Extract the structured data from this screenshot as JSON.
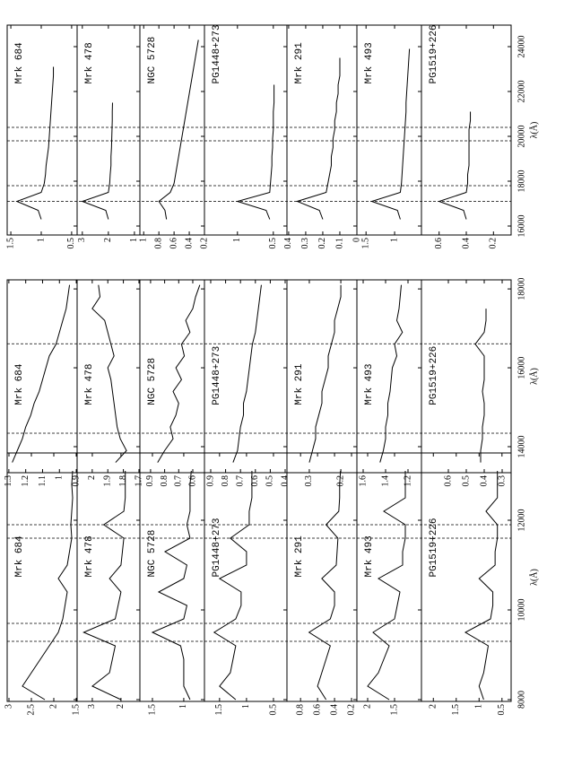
{
  "chart_data": [
    {
      "type": "line",
      "xlabel": "λ(Å)",
      "xlim": [
        7960,
        13500
      ],
      "xticks": [
        8000,
        10000,
        12000
      ],
      "vlines": [
        9300,
        9700,
        11600,
        11900
      ],
      "x": [
        8000,
        8300,
        8600,
        8900,
        9200,
        9500,
        9800,
        10100,
        10400,
        10700,
        11000,
        11300,
        11600,
        11900,
        12200,
        12500,
        12800,
        13100
      ],
      "series": [
        {
          "name": "Mrk 684",
          "ylim": [
            1.48,
            3.04
          ],
          "yticks": [
            3,
            2.5,
            2,
            1.5
          ],
          "values": [
            2.2,
            2.7,
            2.5,
            2.3,
            2.1,
            1.9,
            1.8,
            1.75,
            1.7,
            1.9,
            1.7,
            1.65,
            1.6,
            1.62,
            1.6,
            1.58,
            1.6,
            1.58
          ]
        },
        {
          "name": "Mrk 478",
          "ylim": [
            1.34,
            3.53
          ],
          "yticks": [
            3,
            2
          ],
          "values": [
            2.0,
            3.0,
            2.4,
            2.3,
            2.2,
            3.3,
            2.2,
            2.1,
            2.0,
            2.4,
            2.0,
            1.95,
            1.9,
            2.6,
            1.9,
            1.85,
            1.85,
            1.85
          ]
        },
        {
          "name": "NGC 5728",
          "ylim": [
            0.67,
            1.7
          ],
          "yticks": [
            1.5,
            1
          ],
          "values": [
            0.9,
            1.0,
            1.0,
            1.0,
            1.05,
            1.5,
            1.0,
            0.95,
            1.4,
            1.0,
            0.95,
            1.3,
            0.9,
            0.95,
            0.9,
            0.9,
            0.9,
            0.88
          ]
        },
        {
          "name": "PG1448+273",
          "ylim": [
            0.25,
            1.78
          ],
          "yticks": [
            1.5,
            1,
            0.5
          ],
          "values": [
            1.2,
            1.5,
            1.3,
            1.25,
            1.2,
            1.6,
            1.2,
            1.1,
            1.1,
            1.5,
            1.0,
            1.0,
            1.3,
            0.95,
            0.95,
            0.9,
            0.9,
            0.9
          ]
        },
        {
          "name": "Mrk 291",
          "ylim": [
            0.137,
            0.96
          ],
          "yticks": [
            0.8,
            0.6,
            0.4,
            0.2
          ],
          "values": [
            0.5,
            0.6,
            0.55,
            0.5,
            0.45,
            0.7,
            0.45,
            0.4,
            0.4,
            0.55,
            0.38,
            0.37,
            0.36,
            0.5,
            0.35,
            0.34,
            0.34,
            0.33
          ]
        },
        {
          "name": "Mrk 493",
          "ylim": [
            1.0,
            2.2
          ],
          "yticks": [
            2,
            1.5
          ],
          "values": [
            1.6,
            2.0,
            1.8,
            1.7,
            1.6,
            1.9,
            1.5,
            1.45,
            1.4,
            1.8,
            1.35,
            1.35,
            1.3,
            1.3,
            1.7,
            1.3,
            1.3,
            1.3
          ]
        },
        {
          "name": "PG1519+226",
          "ylim": [
            0.3,
            2.26
          ],
          "yticks": [
            2,
            1.5,
            1,
            0.5
          ],
          "values": [
            0.9,
            1.0,
            0.9,
            0.85,
            0.8,
            1.3,
            0.75,
            0.7,
            0.7,
            1.0,
            0.65,
            0.65,
            0.6,
            0.6,
            0.85,
            0.6,
            0.6,
            0.6
          ]
        }
      ]
    },
    {
      "type": "line",
      "xlabel": "λ(Å)",
      "xlim": [
        13340,
        18230
      ],
      "xticks": [
        14000,
        16000,
        18000
      ],
      "vlines": [
        14340,
        16610
      ],
      "x": [
        13600,
        13900,
        14200,
        14500,
        14800,
        15100,
        15400,
        15700,
        16000,
        16300,
        16600,
        16900,
        17200,
        17500,
        17800,
        18100
      ],
      "series": [
        {
          "name": "Mrk 684",
          "ylim": [
            0.895,
            1.31
          ],
          "yticks": [
            1.3,
            1.2,
            1.1,
            1,
            0.9
          ],
          "values": [
            1.28,
            1.25,
            1.22,
            1.2,
            1.17,
            1.15,
            1.12,
            1.1,
            1.08,
            1.06,
            1.02,
            1.0,
            0.98,
            0.96,
            0.95,
            0.94
          ]
        },
        {
          "name": "Mrk 478",
          "ylim": [
            1.694,
            2.097
          ],
          "yticks": [
            2,
            1.9,
            1.8,
            1.7
          ],
          "values": [
            1.85,
            1.78,
            1.82,
            1.84,
            1.85,
            1.86,
            1.87,
            1.88,
            1.9,
            1.86,
            1.88,
            1.9,
            1.92,
            2.0,
            1.95,
            1.96
          ]
        },
        {
          "name": "NGC 5728",
          "ylim": [
            0.517,
            0.976
          ],
          "yticks": [
            0.9,
            0.8,
            0.7,
            0.6
          ],
          "values": [
            0.85,
            0.8,
            0.74,
            0.76,
            0.72,
            0.7,
            0.74,
            0.68,
            0.72,
            0.66,
            0.68,
            0.62,
            0.65,
            0.6,
            0.58,
            0.55
          ]
        },
        {
          "name": "PG1448+273",
          "ylim": [
            0.388,
            0.942
          ],
          "yticks": [
            0.9,
            0.8,
            0.7,
            0.6,
            0.5,
            0.4
          ],
          "values": [
            0.75,
            0.72,
            0.71,
            0.7,
            0.68,
            0.68,
            0.66,
            0.65,
            0.64,
            0.63,
            0.62,
            0.6,
            0.59,
            0.58,
            0.57,
            0.56
          ]
        },
        {
          "name": "Mrk 291",
          "ylim": [
            0.149,
            0.371
          ],
          "yticks": [
            0.3,
            0.2
          ],
          "values": [
            0.3,
            0.29,
            0.28,
            0.28,
            0.27,
            0.26,
            0.26,
            0.25,
            0.24,
            0.24,
            0.23,
            0.22,
            0.22,
            0.21,
            0.2,
            0.2
          ]
        },
        {
          "name": "Mrk 493",
          "ylim": [
            1.08,
            1.656
          ],
          "yticks": [
            1.6,
            1.4,
            1.2
          ],
          "values": [
            1.45,
            1.42,
            1.4,
            1.4,
            1.38,
            1.38,
            1.36,
            1.35,
            1.34,
            1.3,
            1.32,
            1.25,
            1.3,
            1.28,
            1.27,
            1.26
          ]
        },
        {
          "name": "PG1519+226",
          "ylim": [
            0.25,
            0.75
          ],
          "yticks": [
            0.6,
            0.5,
            0.4,
            0.3
          ],
          "values": [
            0.42,
            0.42,
            0.41,
            0.41,
            0.4,
            0.4,
            0.41,
            0.4,
            0.4,
            0.4,
            0.45,
            0.4,
            0.39,
            0.39,
            null,
            null
          ]
        }
      ]
    },
    {
      "type": "line",
      "xlabel": "λ(Å)",
      "xlim": [
        15600,
        24960
      ],
      "xticks": [
        16000,
        18000,
        20000,
        22000,
        24000
      ],
      "vlines": [
        17100,
        17800,
        19800,
        20400
      ],
      "x": [
        16300,
        16700,
        17100,
        17500,
        17900,
        18300,
        18700,
        19100,
        19500,
        19900,
        20300,
        20700,
        21100,
        21500,
        21900,
        22300,
        22700,
        23100,
        23500,
        23900,
        24300
      ],
      "series": [
        {
          "name": "Mrk 684",
          "ylim": [
            0.41,
            1.56
          ],
          "yticks": [
            1.5,
            1,
            0.5
          ],
          "values": [
            1.0,
            1.05,
            1.4,
            1.0,
            0.95,
            0.93,
            0.92,
            0.9,
            0.88,
            0.87,
            0.86,
            0.85,
            0.84,
            0.83,
            0.82,
            0.81,
            0.8,
            0.8,
            null,
            null,
            null
          ]
        },
        {
          "name": "Mrk 478",
          "ylim": [
            0.79,
            3.2
          ],
          "yticks": [
            3,
            2,
            1
          ],
          "values": [
            2.0,
            2.1,
            3.0,
            2.0,
            1.95,
            1.93,
            1.9,
            1.9,
            1.88,
            1.87,
            1.86,
            1.85,
            1.85,
            1.84,
            null,
            null,
            null,
            null,
            null,
            null,
            null
          ]
        },
        {
          "name": "NGC 5728",
          "ylim": [
            0.2,
            1.05
          ],
          "yticks": [
            1,
            0.8,
            0.6,
            0.4,
            0.2
          ],
          "values": [
            0.7,
            0.72,
            0.8,
            0.65,
            0.6,
            0.58,
            0.56,
            0.54,
            0.52,
            0.5,
            0.48,
            0.46,
            0.44,
            0.42,
            0.4,
            0.38,
            0.36,
            0.34,
            0.32,
            0.3,
            0.28
          ]
        },
        {
          "name": "PG1448+273",
          "ylim": [
            0.31,
            1.46
          ],
          "yticks": [
            1,
            0.5
          ],
          "values": [
            0.55,
            0.6,
            1.0,
            0.55,
            0.54,
            0.53,
            0.52,
            0.52,
            0.51,
            0.51,
            0.5,
            0.5,
            0.5,
            0.49,
            0.49,
            0.49,
            null,
            null,
            null,
            null,
            null
          ]
        },
        {
          "name": "Mrk 291",
          "ylim": [
            0,
            0.41
          ],
          "yticks": [
            0.4,
            0.3,
            0.2,
            0.1,
            0
          ],
          "values": [
            0.2,
            0.22,
            0.35,
            0.18,
            0.17,
            0.16,
            0.15,
            0.15,
            0.14,
            0.14,
            0.13,
            0.13,
            0.12,
            0.12,
            0.11,
            0.11,
            0.1,
            0.1,
            0.1,
            null,
            null
          ]
        },
        {
          "name": "Mrk 493",
          "ylim": [
            0.53,
            1.66
          ],
          "yticks": [
            1.5,
            1
          ],
          "values": [
            0.9,
            0.95,
            1.4,
            0.9,
            0.88,
            0.87,
            0.86,
            0.85,
            0.84,
            0.83,
            0.82,
            0.81,
            0.8,
            0.8,
            0.79,
            0.78,
            0.77,
            0.76,
            0.75,
            0.74,
            null
          ]
        },
        {
          "name": "PG1519+226",
          "ylim": [
            0.07,
            0.73
          ],
          "yticks": [
            0.6,
            0.4,
            0.2
          ],
          "values": [
            0.4,
            0.42,
            0.6,
            0.4,
            0.39,
            0.39,
            0.38,
            0.38,
            0.38,
            0.38,
            0.38,
            0.37,
            0.37,
            null,
            null,
            null,
            null,
            null,
            null,
            null,
            null
          ]
        }
      ]
    }
  ]
}
